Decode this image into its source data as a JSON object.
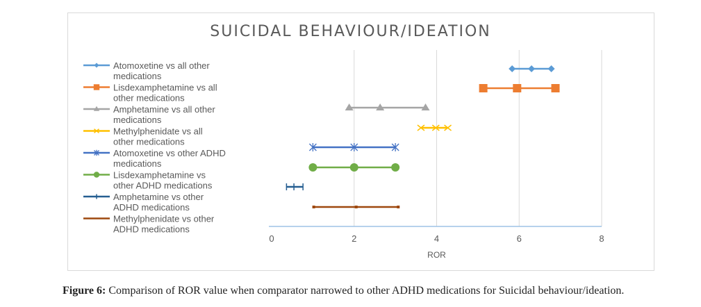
{
  "chart_data": {
    "type": "scatter",
    "title": "SUICIDAL BEHAVIOUR/IDEATION",
    "xlabel": "ROR",
    "ylabel": "",
    "xlim": [
      0,
      8
    ],
    "xticks": [
      "0",
      "2",
      "4",
      "6",
      "8"
    ],
    "grid": "vertical",
    "legend_position": "left",
    "series": [
      {
        "name": "Atomoxetine vs all other medications",
        "label_lines": [
          "Atomoxetine vs all other",
          "medications"
        ],
        "color": "#5b9bd5",
        "marker": "diamond",
        "values": [
          5.83,
          6.3,
          6.78
        ]
      },
      {
        "name": "Lisdexamphetamine vs all other medications",
        "label_lines": [
          "Lisdexamphetamine vs all",
          "other medications"
        ],
        "color": "#ed7d31",
        "marker": "square",
        "values": [
          5.13,
          5.95,
          6.88
        ]
      },
      {
        "name": "Amphetamine vs all other medications",
        "label_lines": [
          "Amphetamine vs all other",
          "medications"
        ],
        "color": "#a5a5a5",
        "marker": "triangle",
        "values": [
          1.88,
          2.63,
          3.73
        ]
      },
      {
        "name": "Methylphenidate vs all other medications",
        "label_lines": [
          "Methylphenidate  vs all",
          "other medications"
        ],
        "color": "#ffc000",
        "marker": "x",
        "values": [
          3.62,
          3.98,
          4.27
        ]
      },
      {
        "name": "Atomoxetine vs other ADHD medications",
        "label_lines": [
          "Atomoxetine vs other ADHD",
          "medications"
        ],
        "color": "#4472c4",
        "marker": "asterisk",
        "values": [
          1.0,
          2.0,
          3.0
        ]
      },
      {
        "name": "Lisdexamphetamine vs other ADHD medications",
        "label_lines": [
          "Lisdexamphetamine vs",
          "other ADHD medications"
        ],
        "color": "#70ad47",
        "marker": "circle",
        "values": [
          1.0,
          2.0,
          3.0
        ]
      },
      {
        "name": "Amphetamine vs other ADHD medications",
        "label_lines": [
          "Amphetamine vs other",
          "ADHD medications"
        ],
        "color": "#255e91",
        "marker": "plus",
        "values": [
          0.36,
          0.54,
          0.76
        ]
      },
      {
        "name": "Methylphenidate vs other ADHD medications",
        "label_lines": [
          "Methylphenidate  vs other",
          "ADHD medications"
        ],
        "color": "#9e480e",
        "marker": "none",
        "values": [
          1.02,
          2.05,
          3.07
        ]
      }
    ]
  },
  "caption": {
    "label": "Figure 6:",
    "text": " Comparison of ROR value when comparator narrowed to other ADHD medications for Suicidal behaviour/ideation."
  }
}
